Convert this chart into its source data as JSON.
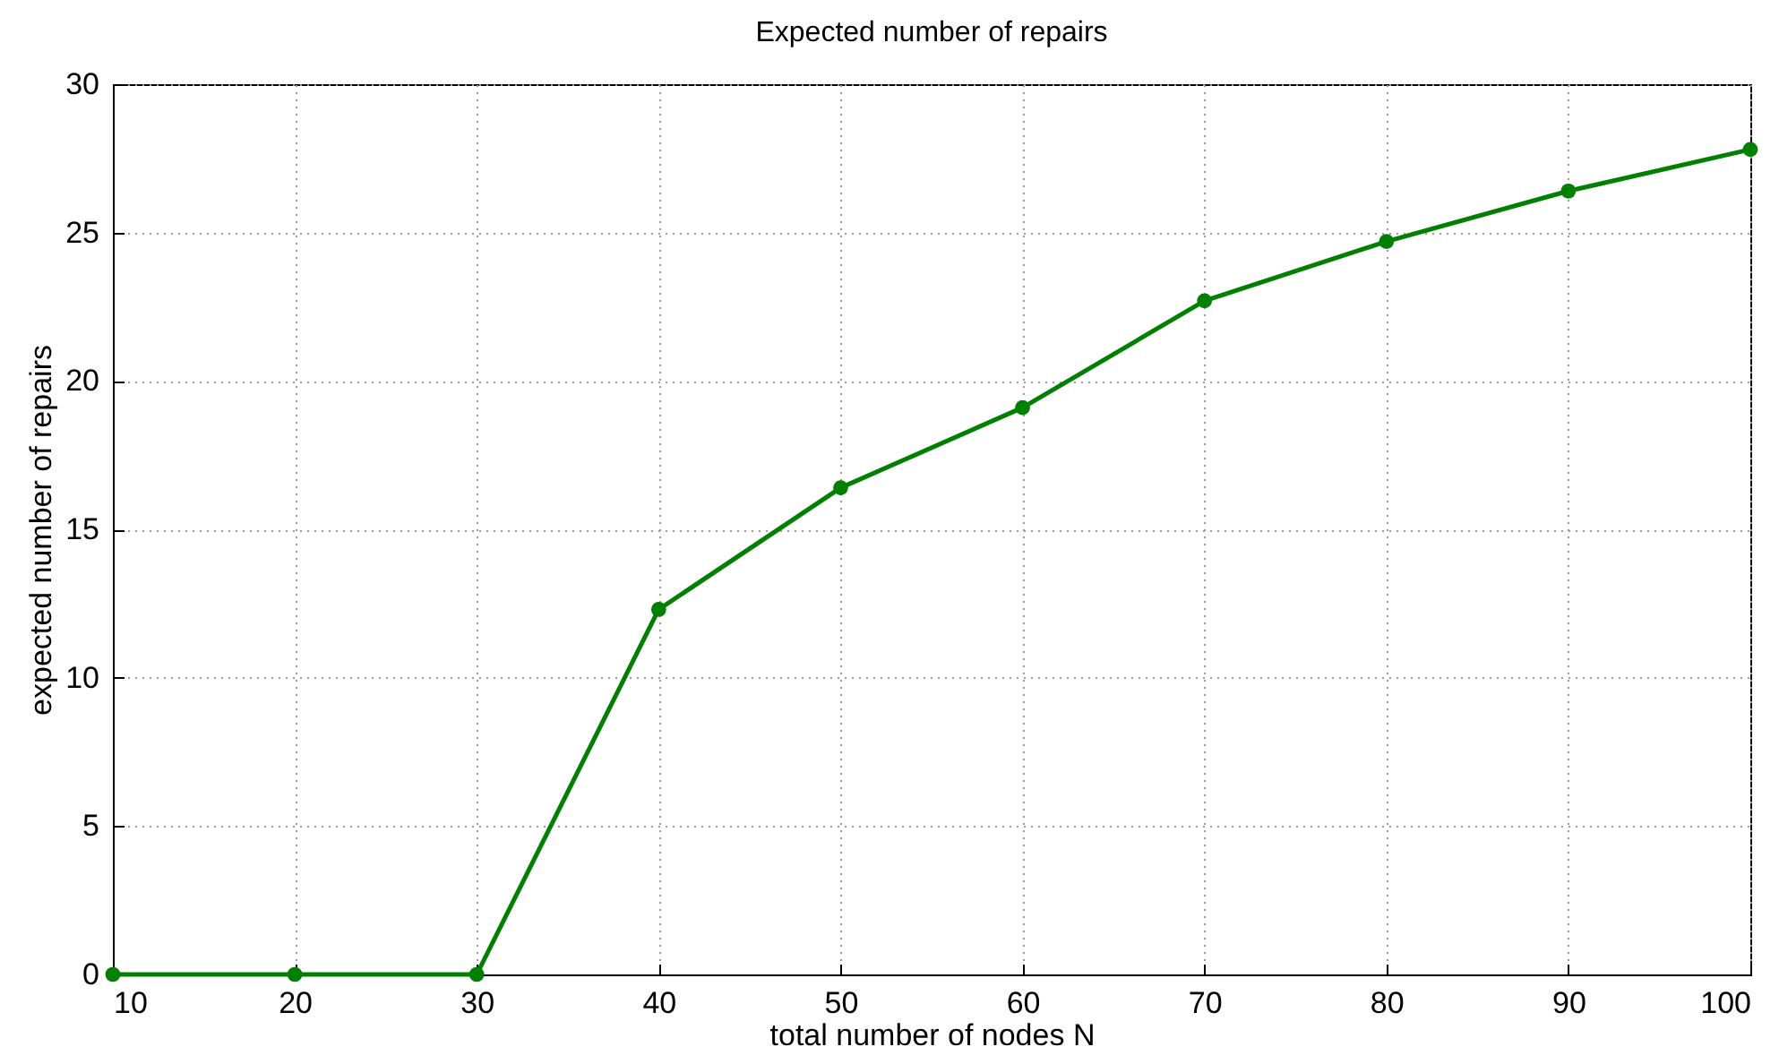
{
  "chart_data": {
    "type": "line",
    "title": "Expected number of repairs",
    "xlabel": "total number of nodes N",
    "ylabel": "expected number of repairs",
    "x": [
      10,
      20,
      30,
      40,
      50,
      60,
      70,
      80,
      90,
      100
    ],
    "series": [
      {
        "color": "#007f00",
        "values": [
          0,
          0,
          0,
          12.3,
          16.4,
          19.1,
          22.7,
          24.7,
          26.4,
          27.8
        ]
      }
    ],
    "xlim": [
      10,
      100
    ],
    "xticks": [
      10,
      20,
      30,
      40,
      50,
      60,
      70,
      80,
      90,
      100
    ],
    "ylim": [
      0,
      30
    ],
    "yticks": [
      0,
      5,
      10,
      15,
      20,
      25,
      30
    ],
    "grid": true,
    "marker": "circle",
    "line_style": "solid"
  }
}
